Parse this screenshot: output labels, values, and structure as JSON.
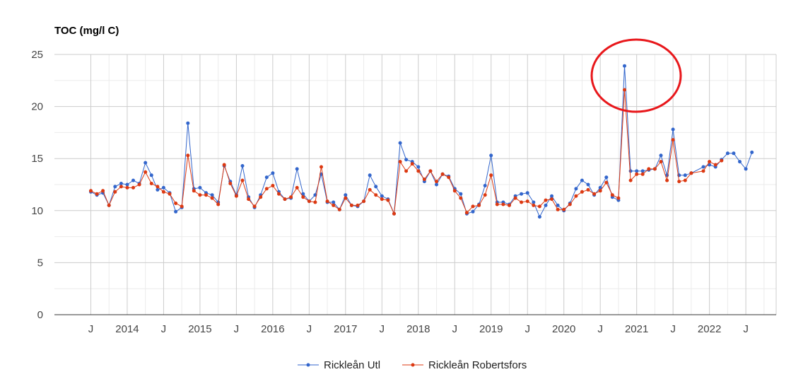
{
  "chart_data": {
    "type": "line",
    "ylabel": "TOC (mg/l C)",
    "ylim": [
      0,
      25
    ],
    "y_ticks": [
      "0",
      "5",
      "10",
      "15",
      "20",
      "25"
    ],
    "x_range": [
      "2013-01",
      "2022-12"
    ],
    "x_ticks": [
      {
        "label": "J",
        "date": "2013-07"
      },
      {
        "label": "2014",
        "date": "2014-01"
      },
      {
        "label": "J",
        "date": "2014-07"
      },
      {
        "label": "2015",
        "date": "2015-01"
      },
      {
        "label": "J",
        "date": "2015-07"
      },
      {
        "label": "2016",
        "date": "2016-01"
      },
      {
        "label": "J",
        "date": "2016-07"
      },
      {
        "label": "2017",
        "date": "2017-01"
      },
      {
        "label": "J",
        "date": "2017-07"
      },
      {
        "label": "2018",
        "date": "2018-01"
      },
      {
        "label": "J",
        "date": "2018-07"
      },
      {
        "label": "2019",
        "date": "2019-01"
      },
      {
        "label": "J",
        "date": "2019-07"
      },
      {
        "label": "2020",
        "date": "2020-01"
      },
      {
        "label": "J",
        "date": "2020-07"
      },
      {
        "label": "2021",
        "date": "2021-01"
      },
      {
        "label": "J",
        "date": "2021-07"
      },
      {
        "label": "2022",
        "date": "2022-01"
      },
      {
        "label": "J",
        "date": "2022-07"
      }
    ],
    "grid": true,
    "legend_position": "bottom",
    "annotation": {
      "shape": "circle",
      "color": "#e8171b",
      "around": "2020-11 peak"
    },
    "series": [
      {
        "name": "Rickleån Utl",
        "color": "#3366cc",
        "points": [
          [
            "2013-07",
            11.8
          ],
          [
            "2013-08",
            11.5
          ],
          [
            "2013-09",
            11.7
          ],
          [
            "2013-10",
            10.5
          ],
          [
            "2013-11",
            12.3
          ],
          [
            "2013-12",
            12.6
          ],
          [
            "2014-01",
            12.5
          ],
          [
            "2014-02",
            12.9
          ],
          [
            "2014-03",
            12.6
          ],
          [
            "2014-04",
            14.6
          ],
          [
            "2014-05",
            13.4
          ],
          [
            "2014-06",
            12.0
          ],
          [
            "2014-07",
            12.2
          ],
          [
            "2014-08",
            11.7
          ],
          [
            "2014-09",
            9.9
          ],
          [
            "2014-10",
            10.3
          ],
          [
            "2014-11",
            18.4
          ],
          [
            "2014-12",
            12.1
          ],
          [
            "2015-01",
            12.2
          ],
          [
            "2015-02",
            11.7
          ],
          [
            "2015-03",
            11.5
          ],
          [
            "2015-04",
            10.8
          ],
          [
            "2015-05",
            14.3
          ],
          [
            "2015-06",
            12.8
          ],
          [
            "2015-07",
            11.5
          ],
          [
            "2015-08",
            14.3
          ],
          [
            "2015-09",
            11.3
          ],
          [
            "2015-10",
            10.3
          ],
          [
            "2015-11",
            11.5
          ],
          [
            "2015-12",
            13.2
          ],
          [
            "2016-01",
            13.6
          ],
          [
            "2016-02",
            11.8
          ],
          [
            "2016-03",
            11.1
          ],
          [
            "2016-04",
            11.2
          ],
          [
            "2016-05",
            14.0
          ],
          [
            "2016-06",
            11.6
          ],
          [
            "2016-07",
            10.9
          ],
          [
            "2016-08",
            11.5
          ],
          [
            "2016-09",
            13.5
          ],
          [
            "2016-10",
            10.8
          ],
          [
            "2016-11",
            10.8
          ],
          [
            "2016-12",
            10.1
          ],
          [
            "2017-01",
            11.5
          ],
          [
            "2017-02",
            10.5
          ],
          [
            "2017-03",
            10.4
          ],
          [
            "2017-04",
            10.9
          ],
          [
            "2017-05",
            13.4
          ],
          [
            "2017-06",
            12.3
          ],
          [
            "2017-07",
            11.4
          ],
          [
            "2017-08",
            11.1
          ],
          [
            "2017-09",
            9.7
          ],
          [
            "2017-10",
            16.5
          ],
          [
            "2017-11",
            14.9
          ],
          [
            "2017-12",
            14.7
          ],
          [
            "2018-01",
            14.2
          ],
          [
            "2018-02",
            12.8
          ],
          [
            "2018-03",
            13.8
          ],
          [
            "2018-04",
            12.5
          ],
          [
            "2018-05",
            13.5
          ],
          [
            "2018-06",
            13.3
          ],
          [
            "2018-07",
            12.1
          ],
          [
            "2018-08",
            11.6
          ],
          [
            "2018-09",
            9.7
          ],
          [
            "2018-10",
            9.9
          ],
          [
            "2018-11",
            10.6
          ],
          [
            "2018-12",
            12.4
          ],
          [
            "2019-01",
            15.3
          ],
          [
            "2019-02",
            10.8
          ],
          [
            "2019-03",
            10.8
          ],
          [
            "2019-04",
            10.6
          ],
          [
            "2019-05",
            11.4
          ],
          [
            "2019-06",
            11.6
          ],
          [
            "2019-07",
            11.7
          ],
          [
            "2019-08",
            10.8
          ],
          [
            "2019-09",
            9.4
          ],
          [
            "2019-10",
            10.5
          ],
          [
            "2019-11",
            11.4
          ],
          [
            "2019-12",
            10.5
          ],
          [
            "2020-01",
            10.0
          ],
          [
            "2020-02",
            10.7
          ],
          [
            "2020-03",
            12.1
          ],
          [
            "2020-04",
            12.9
          ],
          [
            "2020-05",
            12.5
          ],
          [
            "2020-06",
            11.5
          ],
          [
            "2020-07",
            12.2
          ],
          [
            "2020-08",
            13.2
          ],
          [
            "2020-09",
            11.3
          ],
          [
            "2020-10",
            11.0
          ],
          [
            "2020-11",
            23.9
          ],
          [
            "2020-12",
            13.8
          ],
          [
            "2021-01",
            13.8
          ],
          [
            "2021-02",
            13.8
          ],
          [
            "2021-03",
            13.9
          ],
          [
            "2021-04",
            14.0
          ],
          [
            "2021-05",
            15.3
          ],
          [
            "2021-06",
            13.4
          ],
          [
            "2021-07",
            17.8
          ],
          [
            "2021-08",
            13.4
          ],
          [
            "2021-09",
            13.4
          ],
          [
            "2021-10",
            13.6
          ],
          [
            "2021-12",
            14.2
          ],
          [
            "2022-01",
            14.4
          ],
          [
            "2022-02",
            14.2
          ],
          [
            "2022-03",
            14.9
          ],
          [
            "2022-04",
            15.5
          ],
          [
            "2022-05",
            15.5
          ],
          [
            "2022-06",
            14.7
          ],
          [
            "2022-07",
            14.0
          ],
          [
            "2022-08",
            15.6
          ]
        ]
      },
      {
        "name": "Rickleån Robertsfors",
        "color": "#dc3912",
        "points": [
          [
            "2013-07",
            11.9
          ],
          [
            "2013-08",
            11.6
          ],
          [
            "2013-09",
            11.9
          ],
          [
            "2013-10",
            10.5
          ],
          [
            "2013-11",
            11.8
          ],
          [
            "2013-12",
            12.3
          ],
          [
            "2014-01",
            12.2
          ],
          [
            "2014-02",
            12.2
          ],
          [
            "2014-03",
            12.5
          ],
          [
            "2014-04",
            13.7
          ],
          [
            "2014-05",
            12.6
          ],
          [
            "2014-06",
            12.3
          ],
          [
            "2014-07",
            11.8
          ],
          [
            "2014-08",
            11.6
          ],
          [
            "2014-09",
            10.7
          ],
          [
            "2014-10",
            10.4
          ],
          [
            "2014-11",
            15.3
          ],
          [
            "2014-12",
            11.9
          ],
          [
            "2015-01",
            11.5
          ],
          [
            "2015-02",
            11.5
          ],
          [
            "2015-03",
            11.2
          ],
          [
            "2015-04",
            10.6
          ],
          [
            "2015-05",
            14.4
          ],
          [
            "2015-06",
            12.6
          ],
          [
            "2015-07",
            11.4
          ],
          [
            "2015-08",
            12.9
          ],
          [
            "2015-09",
            11.1
          ],
          [
            "2015-10",
            10.4
          ],
          [
            "2015-11",
            11.3
          ],
          [
            "2015-12",
            12.1
          ],
          [
            "2016-01",
            12.4
          ],
          [
            "2016-02",
            11.6
          ],
          [
            "2016-03",
            11.1
          ],
          [
            "2016-04",
            11.3
          ],
          [
            "2016-05",
            12.2
          ],
          [
            "2016-06",
            11.3
          ],
          [
            "2016-07",
            10.9
          ],
          [
            "2016-08",
            10.8
          ],
          [
            "2016-09",
            14.2
          ],
          [
            "2016-10",
            10.9
          ],
          [
            "2016-11",
            10.5
          ],
          [
            "2016-12",
            10.1
          ],
          [
            "2017-01",
            11.2
          ],
          [
            "2017-02",
            10.5
          ],
          [
            "2017-03",
            10.5
          ],
          [
            "2017-04",
            10.9
          ],
          [
            "2017-05",
            12.0
          ],
          [
            "2017-06",
            11.5
          ],
          [
            "2017-07",
            11.1
          ],
          [
            "2017-08",
            11.0
          ],
          [
            "2017-09",
            9.7
          ],
          [
            "2017-10",
            14.7
          ],
          [
            "2017-11",
            13.8
          ],
          [
            "2017-12",
            14.5
          ],
          [
            "2018-01",
            13.8
          ],
          [
            "2018-02",
            13.0
          ],
          [
            "2018-03",
            13.8
          ],
          [
            "2018-04",
            12.8
          ],
          [
            "2018-05",
            13.5
          ],
          [
            "2018-06",
            13.2
          ],
          [
            "2018-07",
            11.9
          ],
          [
            "2018-08",
            11.2
          ],
          [
            "2018-09",
            9.8
          ],
          [
            "2018-10",
            10.4
          ],
          [
            "2018-11",
            10.5
          ],
          [
            "2018-12",
            11.5
          ],
          [
            "2019-01",
            13.4
          ],
          [
            "2019-02",
            10.6
          ],
          [
            "2019-03",
            10.6
          ],
          [
            "2019-04",
            10.5
          ],
          [
            "2019-05",
            11.2
          ],
          [
            "2019-06",
            10.8
          ],
          [
            "2019-07",
            10.9
          ],
          [
            "2019-08",
            10.5
          ],
          [
            "2019-09",
            10.4
          ],
          [
            "2019-10",
            11.0
          ],
          [
            "2019-11",
            11.1
          ],
          [
            "2019-12",
            10.1
          ],
          [
            "2020-01",
            10.1
          ],
          [
            "2020-02",
            10.6
          ],
          [
            "2020-03",
            11.4
          ],
          [
            "2020-04",
            11.8
          ],
          [
            "2020-05",
            12.0
          ],
          [
            "2020-06",
            11.6
          ],
          [
            "2020-07",
            11.9
          ],
          [
            "2020-08",
            12.7
          ],
          [
            "2020-09",
            11.5
          ],
          [
            "2020-10",
            11.2
          ],
          [
            "2020-11",
            21.6
          ],
          [
            "2020-12",
            12.9
          ],
          [
            "2021-01",
            13.5
          ],
          [
            "2021-02",
            13.5
          ],
          [
            "2021-03",
            14.0
          ],
          [
            "2021-04",
            14.0
          ],
          [
            "2021-05",
            14.7
          ],
          [
            "2021-06",
            12.9
          ],
          [
            "2021-07",
            16.8
          ],
          [
            "2021-08",
            12.8
          ],
          [
            "2021-09",
            12.9
          ],
          [
            "2021-10",
            13.6
          ],
          [
            "2021-12",
            13.8
          ],
          [
            "2022-01",
            14.7
          ],
          [
            "2022-02",
            14.4
          ],
          [
            "2022-03",
            14.8
          ]
        ]
      }
    ]
  }
}
